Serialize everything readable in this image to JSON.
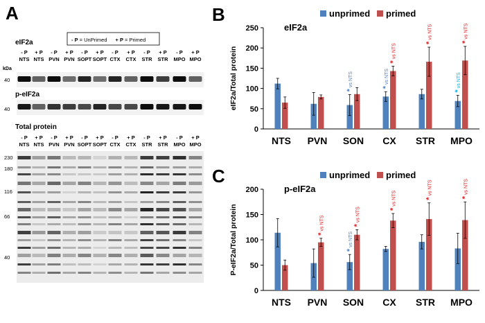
{
  "panel_a": {
    "letter": "A",
    "legend_text": [
      {
        "k": "- P",
        "v": " = UnPrimed"
      },
      {
        "k": "+ P",
        "v": " = Primed"
      }
    ],
    "blot_titles": [
      "eIF2a",
      "p-eIF2a",
      "Total protein"
    ],
    "kda": "kDa",
    "lane_p": [
      "- P",
      "+ P",
      "- P",
      "+ P",
      "- P",
      "+ P",
      "- P",
      "+ P",
      "- P",
      "+ P",
      "- P",
      "+ P"
    ],
    "lane_region_top": [
      "NTS",
      "NTS",
      "PVN",
      "PVN",
      "SOPT",
      "SOPT",
      "CTX",
      "CTX",
      "STR",
      "STR",
      "MPO",
      "MPO"
    ],
    "lane_region_bottom": [
      "NTS",
      "NTS",
      "PVN",
      "PVN",
      "SOPT",
      "SOPT",
      "CTX",
      "CTX",
      "STR",
      "STR",
      "MPO",
      "MPO"
    ],
    "mw_small": [
      "40",
      "40"
    ],
    "mw_total": [
      "230",
      "180",
      "116",
      "66",
      "40"
    ]
  },
  "chart_data": [
    {
      "type": "bar",
      "panel": "B",
      "title": "eIF2a",
      "ylabel": "eIF2a/Total protein",
      "categories": [
        "NTS",
        "PVN",
        "SON",
        "CX",
        "STR",
        "MPO"
      ],
      "ylim": [
        0,
        250
      ],
      "yticks": [
        0,
        50,
        100,
        150,
        200,
        250
      ],
      "series": [
        {
          "name": "unprimed",
          "color": "#4f81bd",
          "values": [
            112,
            62,
            59,
            80,
            86,
            69
          ],
          "errors": [
            13,
            28,
            26,
            12,
            12,
            14
          ]
        },
        {
          "name": "primed",
          "color": "#c0504d",
          "values": [
            65,
            79,
            86,
            143,
            166,
            169
          ],
          "errors": [
            14,
            5,
            16,
            12,
            36,
            35
          ]
        }
      ],
      "annotations": [
        {
          "category": "SON",
          "series": "unprimed",
          "text": "vs NTS",
          "color": "#4f81bd"
        },
        {
          "category": "CX",
          "series": "unprimed",
          "text": "vs NTS",
          "color": "#4f81bd"
        },
        {
          "category": "CX",
          "series": "primed",
          "text": "vs NTS",
          "color": "#e02020"
        },
        {
          "category": "STR",
          "series": "primed",
          "text": "vs NTS",
          "color": "#e02020"
        },
        {
          "category": "MPO",
          "series": "unprimed",
          "text": "vs NTS",
          "color": "#00b0f0"
        },
        {
          "category": "MPO",
          "series": "primed",
          "text": "vs NTS",
          "color": "#e02020"
        }
      ],
      "grid": false,
      "legend": "top"
    },
    {
      "type": "bar",
      "panel": "C",
      "title": "p-eIF2a",
      "ylabel": "P-eIF2a/Total protein",
      "categories": [
        "NTS",
        "PVN",
        "SON",
        "CX",
        "STR",
        "MPO"
      ],
      "ylim": [
        0,
        200
      ],
      "yticks": [
        0,
        50,
        100,
        150,
        200
      ],
      "series": [
        {
          "name": "unprimed",
          "color": "#4f81bd",
          "values": [
            114,
            54,
            56,
            82,
            96,
            83
          ],
          "errors": [
            28,
            28,
            15,
            5,
            14,
            30
          ]
        },
        {
          "name": "primed",
          "color": "#c0504d",
          "values": [
            50,
            95,
            110,
            138,
            141,
            139
          ],
          "errors": [
            10,
            8,
            10,
            14,
            32,
            36
          ]
        }
      ],
      "annotations": [
        {
          "category": "PVN",
          "series": "primed",
          "text": "vs NTS",
          "color": "#e02020"
        },
        {
          "category": "SON",
          "series": "unprimed",
          "text": "vs NTS",
          "color": "#4f81bd"
        },
        {
          "category": "SON",
          "series": "primed",
          "text": "vs NTS",
          "color": "#e02020"
        },
        {
          "category": "CX",
          "series": "primed",
          "text": "vs NTS",
          "color": "#e02020"
        },
        {
          "category": "STR",
          "series": "primed",
          "text": "vs NTS",
          "color": "#e02020"
        },
        {
          "category": "MPO",
          "series": "primed",
          "text": "vs NTS",
          "color": "#e02020"
        }
      ],
      "grid": false,
      "legend": "top"
    }
  ],
  "panel_letters": [
    "B",
    "C"
  ],
  "asterisk": "*"
}
